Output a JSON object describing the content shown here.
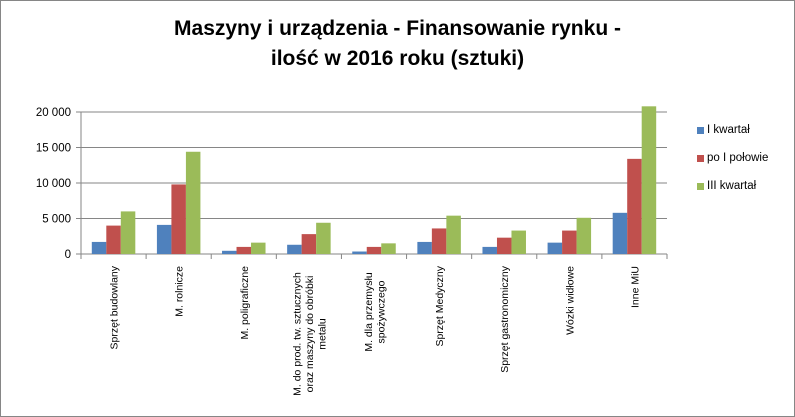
{
  "chart_data": {
    "type": "bar",
    "title": "Maszyny i urządzenia - Finansowanie rynku - ilość w 2016 roku (sztuki)",
    "title_lines": [
      "Maszyny i urządzenia - Finansowanie rynku -",
      "ilość w 2016 roku (sztuki)"
    ],
    "xlabel": "",
    "ylabel": "",
    "ylim": [
      0,
      20000
    ],
    "yticks": [
      0,
      5000,
      10000,
      15000,
      20000
    ],
    "ytick_labels": [
      "0",
      "5 000",
      "10 000",
      "15 000",
      "20 000"
    ],
    "grid": true,
    "legend_position": "right",
    "categories": [
      "Sprzęt budowlany",
      "M. rolnicze",
      "M. poligraficzne",
      "M. do prod. tw. sztucznych oraz maszyny do obróbki metalu",
      "M. dla przemysłu spożywczego",
      "Sprzęt Medyczny",
      "Sprzęt gastronomiczny",
      "Wózki widłowe",
      "Inne MiU"
    ],
    "category_label_lines": [
      [
        "Sprzęt budowlany"
      ],
      [
        "M. rolnicze"
      ],
      [
        "M. poligraficzne"
      ],
      [
        "M. do prod. tw. sztucznych",
        "oraz maszyny do obróbki",
        "metalu"
      ],
      [
        "M. dla przemysłu",
        "spożywczego"
      ],
      [
        "Sprzęt Medyczny"
      ],
      [
        "Sprzęt gastronomiczny"
      ],
      [
        "Wózki widłowe"
      ],
      [
        "Inne MiU"
      ]
    ],
    "series": [
      {
        "name": "I kwartał",
        "color": "#4F81BD",
        "values": [
          1700,
          4100,
          450,
          1300,
          350,
          1700,
          1000,
          1600,
          5800
        ]
      },
      {
        "name": "po I połowie",
        "color": "#C0504D",
        "values": [
          4000,
          9800,
          1000,
          2800,
          1000,
          3600,
          2300,
          3300,
          13400
        ]
      },
      {
        "name": "III kwartał",
        "color": "#9BBB59",
        "values": [
          6000,
          14400,
          1600,
          4400,
          1500,
          5400,
          3300,
          5100,
          20800
        ]
      }
    ]
  }
}
